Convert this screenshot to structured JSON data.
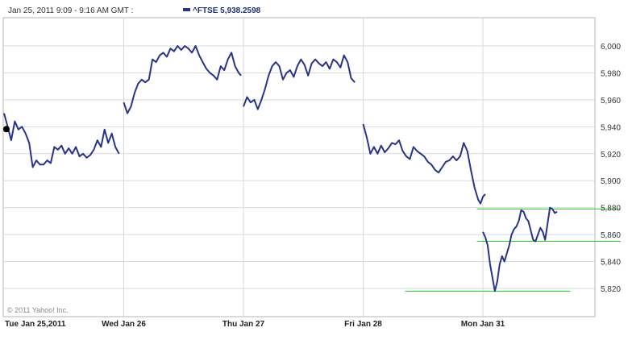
{
  "header": {
    "time_range": "Jan 25, 2011 9:09 - 9:16 AM GMT :",
    "series_label": "^FTSE 5,938.2598"
  },
  "copyright": "© 2011 Yahoo! Inc.",
  "colors": {
    "series_line": "#27348b",
    "grid": "#d9d9d9",
    "axis": "#9a9a9a",
    "annotation": "#22cc22",
    "marker": "#000000"
  },
  "chart_data": {
    "type": "line",
    "title": "",
    "xlabel": "",
    "ylabel": "",
    "ylim": [
      5810,
      6010
    ],
    "xlim": [
      0,
      5.15
    ],
    "y_ticks": [
      5820,
      5840,
      5860,
      5880,
      5900,
      5920,
      5940,
      5960,
      5980,
      6000
    ],
    "y_tick_labels": [
      "5,820",
      "5,840",
      "5,860",
      "5,880",
      "5,900",
      "5,920",
      "5,940",
      "5,960",
      "5,980",
      "6,000"
    ],
    "x_ticks": [
      0,
      1,
      2,
      3,
      4
    ],
    "x_tick_labels": [
      "Tue Jan 25,2011",
      "Wed Jan 26",
      "Thu Jan 27",
      "Fri Jan 28",
      "Mon Jan 31"
    ],
    "grid": true,
    "hover_point": {
      "x": 0.02,
      "y": 5938.2598
    },
    "series": [
      {
        "segments": [
          [
            [
              0.0,
              5950
            ],
            [
              0.03,
              5940
            ],
            [
              0.06,
              5930
            ],
            [
              0.09,
              5944
            ],
            [
              0.12,
              5938
            ],
            [
              0.15,
              5940
            ],
            [
              0.18,
              5935
            ],
            [
              0.21,
              5928
            ],
            [
              0.24,
              5910
            ],
            [
              0.27,
              5915
            ],
            [
              0.3,
              5912
            ],
            [
              0.33,
              5912
            ],
            [
              0.36,
              5915
            ],
            [
              0.39,
              5913
            ],
            [
              0.42,
              5925
            ],
            [
              0.45,
              5923
            ],
            [
              0.48,
              5926
            ],
            [
              0.51,
              5920
            ],
            [
              0.54,
              5924
            ],
            [
              0.57,
              5920
            ],
            [
              0.6,
              5925
            ],
            [
              0.63,
              5918
            ],
            [
              0.66,
              5920
            ],
            [
              0.69,
              5917
            ],
            [
              0.72,
              5919
            ],
            [
              0.75,
              5923
            ],
            [
              0.78,
              5930
            ],
            [
              0.81,
              5925
            ],
            [
              0.84,
              5938
            ],
            [
              0.87,
              5928
            ],
            [
              0.9,
              5935
            ],
            [
              0.93,
              5925
            ],
            [
              0.96,
              5920
            ]
          ],
          [
            [
              1.0,
              5958
            ],
            [
              1.03,
              5950
            ],
            [
              1.06,
              5955
            ],
            [
              1.09,
              5965
            ],
            [
              1.12,
              5972
            ],
            [
              1.15,
              5975
            ],
            [
              1.18,
              5973
            ],
            [
              1.21,
              5975
            ],
            [
              1.24,
              5990
            ],
            [
              1.27,
              5988
            ],
            [
              1.3,
              5993
            ],
            [
              1.33,
              5995
            ],
            [
              1.36,
              5992
            ],
            [
              1.39,
              5998
            ],
            [
              1.42,
              5996
            ],
            [
              1.45,
              6000
            ],
            [
              1.48,
              5997
            ],
            [
              1.51,
              6000
            ],
            [
              1.54,
              5998
            ],
            [
              1.57,
              5995
            ],
            [
              1.6,
              6000
            ],
            [
              1.63,
              5993
            ],
            [
              1.66,
              5988
            ],
            [
              1.69,
              5983
            ],
            [
              1.72,
              5980
            ],
            [
              1.75,
              5978
            ],
            [
              1.78,
              5975
            ],
            [
              1.81,
              5985
            ],
            [
              1.84,
              5982
            ],
            [
              1.87,
              5990
            ],
            [
              1.9,
              5995
            ],
            [
              1.93,
              5985
            ],
            [
              1.96,
              5980
            ],
            [
              1.98,
              5978
            ]
          ],
          [
            [
              2.0,
              5955
            ],
            [
              2.03,
              5962
            ],
            [
              2.06,
              5958
            ],
            [
              2.09,
              5960
            ],
            [
              2.12,
              5953
            ],
            [
              2.15,
              5960
            ],
            [
              2.18,
              5968
            ],
            [
              2.21,
              5978
            ],
            [
              2.24,
              5985
            ],
            [
              2.27,
              5988
            ],
            [
              2.3,
              5985
            ],
            [
              2.33,
              5975
            ],
            [
              2.36,
              5980
            ],
            [
              2.39,
              5982
            ],
            [
              2.42,
              5977
            ],
            [
              2.45,
              5985
            ],
            [
              2.48,
              5990
            ],
            [
              2.51,
              5986
            ],
            [
              2.54,
              5978
            ],
            [
              2.57,
              5987
            ],
            [
              2.6,
              5990
            ],
            [
              2.63,
              5987
            ],
            [
              2.66,
              5985
            ],
            [
              2.69,
              5988
            ],
            [
              2.72,
              5983
            ],
            [
              2.75,
              5990
            ],
            [
              2.78,
              5988
            ],
            [
              2.81,
              5984
            ],
            [
              2.84,
              5993
            ],
            [
              2.87,
              5988
            ],
            [
              2.9,
              5976
            ],
            [
              2.93,
              5973
            ]
          ],
          [
            [
              3.0,
              5942
            ],
            [
              3.03,
              5932
            ],
            [
              3.06,
              5920
            ],
            [
              3.09,
              5925
            ],
            [
              3.12,
              5920
            ],
            [
              3.15,
              5926
            ],
            [
              3.18,
              5921
            ],
            [
              3.21,
              5924
            ],
            [
              3.24,
              5928
            ],
            [
              3.27,
              5927
            ],
            [
              3.3,
              5930
            ],
            [
              3.33,
              5922
            ],
            [
              3.36,
              5918
            ],
            [
              3.39,
              5916
            ],
            [
              3.42,
              5925
            ],
            [
              3.45,
              5922
            ],
            [
              3.48,
              5920
            ],
            [
              3.51,
              5918
            ],
            [
              3.54,
              5914
            ],
            [
              3.57,
              5912
            ],
            [
              3.6,
              5908
            ],
            [
              3.63,
              5906
            ],
            [
              3.66,
              5910
            ],
            [
              3.69,
              5914
            ],
            [
              3.72,
              5915
            ],
            [
              3.75,
              5918
            ],
            [
              3.78,
              5915
            ],
            [
              3.81,
              5918
            ],
            [
              3.84,
              5928
            ],
            [
              3.87,
              5922
            ],
            [
              3.9,
              5908
            ],
            [
              3.93,
              5895
            ],
            [
              3.96,
              5886
            ],
            [
              3.98,
              5883
            ],
            [
              4.0,
              5888
            ],
            [
              4.02,
              5890
            ]
          ],
          [
            [
              4.0,
              5862
            ],
            [
              4.02,
              5858
            ],
            [
              4.04,
              5852
            ],
            [
              4.06,
              5838
            ],
            [
              4.08,
              5828
            ],
            [
              4.1,
              5818
            ],
            [
              4.12,
              5825
            ],
            [
              4.14,
              5838
            ],
            [
              4.16,
              5844
            ],
            [
              4.18,
              5840
            ],
            [
              4.2,
              5846
            ],
            [
              4.22,
              5852
            ],
            [
              4.24,
              5860
            ],
            [
              4.26,
              5864
            ],
            [
              4.28,
              5866
            ],
            [
              4.3,
              5870
            ],
            [
              4.32,
              5878
            ],
            [
              4.34,
              5877
            ],
            [
              4.36,
              5872
            ],
            [
              4.38,
              5870
            ],
            [
              4.4,
              5863
            ],
            [
              4.42,
              5856
            ],
            [
              4.44,
              5855
            ],
            [
              4.46,
              5860
            ],
            [
              4.48,
              5865
            ],
            [
              4.5,
              5862
            ],
            [
              4.52,
              5856
            ],
            [
              4.54,
              5868
            ],
            [
              4.56,
              5880
            ],
            [
              4.58,
              5879
            ],
            [
              4.6,
              5876
            ],
            [
              4.62,
              5877
            ]
          ]
        ]
      }
    ],
    "annotations": [
      {
        "type": "hline",
        "y": 5879,
        "x_start": 3.95,
        "x_end": 5.15
      },
      {
        "type": "hline",
        "y": 5855,
        "x_start": 3.95,
        "x_end": 5.15
      },
      {
        "type": "hline",
        "y": 5818,
        "x_start": 3.35,
        "x_end": 4.73
      }
    ]
  }
}
